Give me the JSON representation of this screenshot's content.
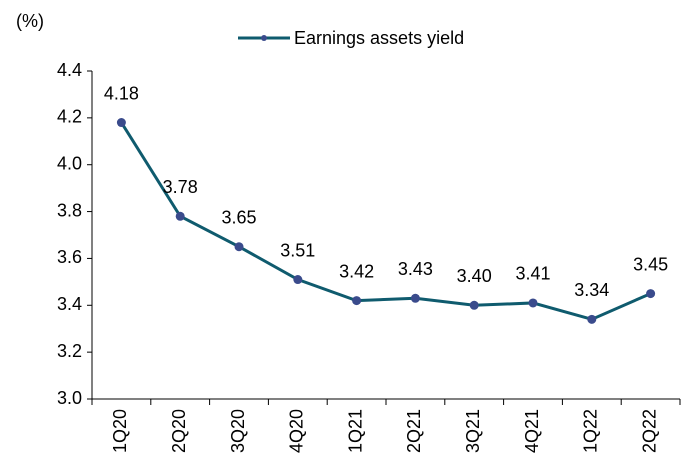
{
  "chart_data": {
    "type": "line",
    "y_label": "(%)",
    "categories": [
      "1Q20",
      "2Q20",
      "3Q20",
      "4Q20",
      "1Q21",
      "2Q21",
      "3Q21",
      "4Q21",
      "1Q22",
      "2Q22"
    ],
    "series": [
      {
        "name": "Earnings assets yield",
        "color": "#0f5b6e",
        "marker_color": "#3a4b8c",
        "values": [
          4.18,
          3.78,
          3.65,
          3.51,
          3.42,
          3.43,
          3.4,
          3.41,
          3.34,
          3.45
        ],
        "value_labels": [
          "4.18",
          "3.78",
          "3.65",
          "3.51",
          "3.42",
          "3.43",
          "3.40",
          "3.41",
          "3.34",
          "3.45"
        ]
      }
    ],
    "ylim": [
      3.0,
      4.4
    ],
    "yticks": [
      {
        "value": 3.0,
        "label": "3.0"
      },
      3.2,
      3.4,
      3.6,
      3.8,
      {
        "value": 4.0,
        "label": "4.0"
      },
      4.2,
      4.4
    ],
    "grid": false
  }
}
